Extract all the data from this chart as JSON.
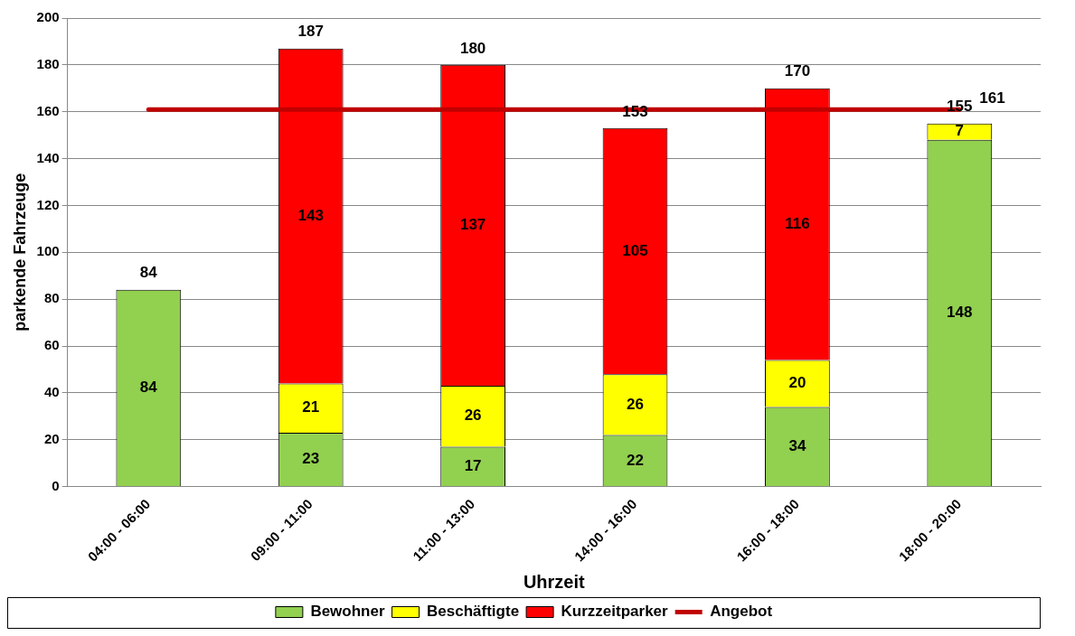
{
  "chart_data": {
    "type": "bar",
    "stacked": true,
    "xlabel": "Uhrzeit",
    "ylabel": "parkende Fahrzeuge",
    "categories": [
      "04:00 - 06:00",
      "09:00 - 11:00",
      "11:00 - 13:00",
      "14:00 - 16:00",
      "16:00 - 18:00",
      "18:00 - 20:00"
    ],
    "series": [
      {
        "name": "Bewohner",
        "color": "#92d050",
        "values": [
          84,
          23,
          17,
          22,
          34,
          148
        ]
      },
      {
        "name": "Beschäftigte",
        "color": "#ffff00",
        "values": [
          null,
          21,
          26,
          26,
          20,
          7
        ]
      },
      {
        "name": "Kurzzeitparker",
        "color": "#ff0000",
        "values": [
          null,
          143,
          137,
          105,
          116,
          null
        ]
      },
      {
        "name": "Angebot",
        "type": "line",
        "color": "#c00000",
        "values": [
          161,
          161,
          161,
          161,
          161,
          161
        ],
        "value_labels": [
          null,
          null,
          null,
          null,
          null,
          "161"
        ]
      }
    ],
    "totals": [
      "84",
      "187",
      "180",
      "153",
      "170",
      "155"
    ],
    "data_labels": true,
    "ylim": [
      0,
      200
    ],
    "yticks": [
      0,
      20,
      40,
      60,
      80,
      100,
      120,
      140,
      160,
      180,
      200
    ],
    "grid": "y",
    "legend": "bottom"
  }
}
